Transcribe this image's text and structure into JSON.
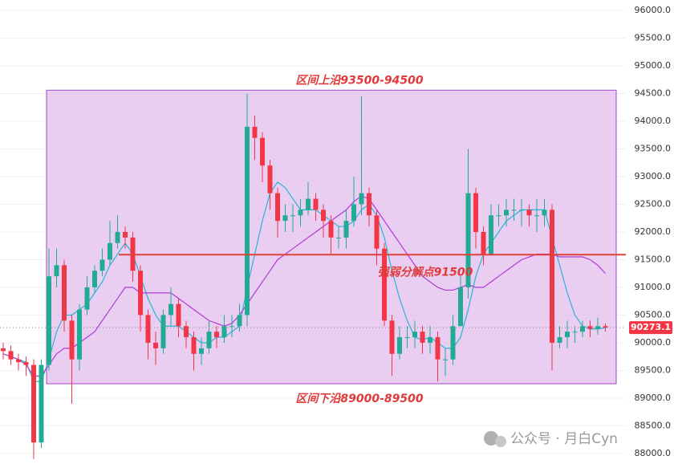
{
  "chart_data": {
    "type": "candlestick",
    "open": [
      89900,
      89850,
      89700,
      89650,
      89600,
      88200,
      89600,
      91200,
      91400,
      90400,
      89700,
      90600,
      91000,
      91300,
      91500,
      91800,
      92000,
      91900,
      91300,
      90500,
      90000,
      89900,
      90500,
      90700,
      90300,
      90100,
      89800,
      89900,
      90200,
      90100,
      90300,
      90300,
      90500,
      93900,
      93700,
      93200,
      92700,
      92200,
      92300,
      92300,
      92400,
      92600,
      92400,
      92200,
      91900,
      91900,
      92200,
      92500,
      92700,
      92300,
      91700,
      90400,
      89800,
      90100,
      90100,
      90200,
      90000,
      90100,
      89700,
      89700,
      90300,
      91000,
      92700,
      92000,
      91600,
      92300,
      92300,
      92400,
      92400,
      92400,
      92300,
      92300,
      92400,
      90000,
      90100,
      90200,
      90200,
      90300,
      90250,
      90300
    ],
    "high": [
      90000,
      89950,
      89800,
      89750,
      89700,
      89700,
      91700,
      91700,
      91500,
      90500,
      90700,
      91200,
      91400,
      91700,
      92200,
      92300,
      92100,
      92000,
      91400,
      90600,
      90200,
      90600,
      91000,
      90800,
      90400,
      90200,
      90100,
      90400,
      90300,
      90500,
      90500,
      90700,
      94500,
      94100,
      93800,
      93300,
      92800,
      92500,
      92500,
      92600,
      92900,
      92700,
      92500,
      92300,
      92100,
      92400,
      93000,
      94450,
      92800,
      92400,
      91800,
      90500,
      90300,
      90300,
      90400,
      90300,
      90300,
      90200,
      89900,
      90500,
      91200,
      93500,
      92800,
      92100,
      92500,
      92500,
      92600,
      92600,
      92600,
      92500,
      92600,
      92600,
      92500,
      90300,
      90400,
      90300,
      90400,
      90400,
      90450,
      90350
    ],
    "low": [
      89700,
      89600,
      89500,
      89400,
      87900,
      88100,
      89500,
      91000,
      90200,
      88900,
      89500,
      90500,
      90900,
      91200,
      91400,
      91700,
      91700,
      91100,
      90200,
      89700,
      89600,
      89800,
      90300,
      90100,
      89900,
      89500,
      89600,
      89800,
      89900,
      90000,
      90100,
      90200,
      90300,
      93300,
      92900,
      92400,
      91900,
      92000,
      92000,
      92100,
      92300,
      92200,
      91900,
      91600,
      91700,
      91700,
      92100,
      92300,
      92100,
      91400,
      90300,
      89400,
      89700,
      89900,
      89900,
      89800,
      89800,
      89300,
      89400,
      89600,
      90300,
      90800,
      91700,
      91400,
      91600,
      92100,
      92100,
      92200,
      92100,
      92100,
      92000,
      92100,
      89500,
      89900,
      89900,
      90000,
      90100,
      90100,
      90150,
      90200
    ],
    "close": [
      89850,
      89700,
      89650,
      89600,
      88200,
      89600,
      91200,
      91400,
      90400,
      89700,
      90600,
      91000,
      91300,
      91500,
      91800,
      92000,
      91900,
      91300,
      90500,
      90000,
      89900,
      90500,
      90700,
      90300,
      90100,
      89800,
      89900,
      90200,
      90100,
      90300,
      90300,
      90500,
      93900,
      93700,
      93200,
      92700,
      92200,
      92300,
      92300,
      92400,
      92600,
      92400,
      92200,
      91900,
      91900,
      92200,
      92500,
      92700,
      92300,
      91700,
      90400,
      89800,
      90100,
      90100,
      90200,
      90000,
      90100,
      89700,
      89700,
      90300,
      91000,
      92700,
      92000,
      91600,
      92300,
      92300,
      92400,
      92400,
      92400,
      92300,
      92300,
      92400,
      90000,
      90100,
      90200,
      90200,
      90300,
      90250,
      90300,
      90273.1
    ],
    "up_color": "#22ab94",
    "down_color": "#f23645",
    "lines": [
      {
        "color": "#26b5d6",
        "values": [
          89800,
          89750,
          89700,
          89650,
          89300,
          89300,
          89700,
          90200,
          90500,
          90500,
          90600,
          90700,
          90900,
          91100,
          91400,
          91600,
          91800,
          91600,
          91200,
          90800,
          90500,
          90300,
          90300,
          90300,
          90200,
          90100,
          90000,
          90000,
          90100,
          90100,
          90200,
          90300,
          91000,
          91600,
          92200,
          92700,
          92900,
          92800,
          92600,
          92400,
          92400,
          92400,
          92300,
          92200,
          92100,
          92100,
          92200,
          92400,
          92500,
          92300,
          91900,
          91300,
          90800,
          90400,
          90100,
          90050,
          90100,
          90000,
          89900,
          89900,
          90100,
          90600,
          91200,
          91600,
          91800,
          92000,
          92200,
          92300,
          92400,
          92400,
          92400,
          92400,
          91900,
          91400,
          90900,
          90500,
          90300,
          90250,
          90250,
          90270
        ]
      },
      {
        "color": "#b03ad6",
        "values": [
          89800,
          89750,
          89700,
          89600,
          89400,
          89400,
          89600,
          89800,
          89900,
          89900,
          90000,
          90100,
          90200,
          90400,
          90600,
          90800,
          91000,
          91000,
          90900,
          90900,
          90900,
          90900,
          90900,
          90800,
          90700,
          90600,
          90500,
          90400,
          90350,
          90300,
          90350,
          90500,
          90700,
          90900,
          91100,
          91300,
          91500,
          91600,
          91700,
          91800,
          91900,
          92000,
          92100,
          92200,
          92300,
          92400,
          92550,
          92650,
          92600,
          92400,
          92200,
          92000,
          91800,
          91600,
          91400,
          91200,
          91100,
          91000,
          90950,
          90950,
          91000,
          91050,
          91000,
          91000,
          91100,
          91200,
          91300,
          91400,
          91500,
          91550,
          91600,
          91600,
          91600,
          91550,
          91550,
          91550,
          91550,
          91500,
          91400,
          91250
        ]
      }
    ],
    "ylim": [
      87739,
      96188
    ],
    "yticks": [
      {
        "value": 88000,
        "label": "88000.0"
      },
      {
        "value": 88500,
        "label": "88500.0"
      },
      {
        "value": 89000,
        "label": "89000.0"
      },
      {
        "value": 89500,
        "label": "89500.0"
      },
      {
        "value": 90000,
        "label": "90000.0"
      },
      {
        "value": 90500,
        "label": "90500.0"
      },
      {
        "value": 91000,
        "label": "91000.0"
      },
      {
        "value": 91500,
        "label": "91500.0"
      },
      {
        "value": 92000,
        "label": "92000.0"
      },
      {
        "value": 92500,
        "label": "92500.0"
      },
      {
        "value": 93000,
        "label": "93000.0"
      },
      {
        "value": 93500,
        "label": "93500.0"
      },
      {
        "value": 94000,
        "label": "94000.0"
      },
      {
        "value": 94500,
        "label": "94500.0"
      },
      {
        "value": 95000,
        "label": "95000.0"
      },
      {
        "value": 95500,
        "label": "95500.0"
      },
      {
        "value": 96000,
        "label": "96000.0"
      }
    ],
    "grid": true,
    "zone": [
      89260,
      94560
    ],
    "zone_color": "#e3c2ee",
    "zone_border": "#a646c8",
    "level": 91590,
    "level_color": "#e0403a",
    "annotations": [
      "区间上沿93500-94500",
      "强弱分解点91500",
      "区间下沿89000-89500"
    ],
    "watermark": "公众号 · 月白Cyn"
  }
}
